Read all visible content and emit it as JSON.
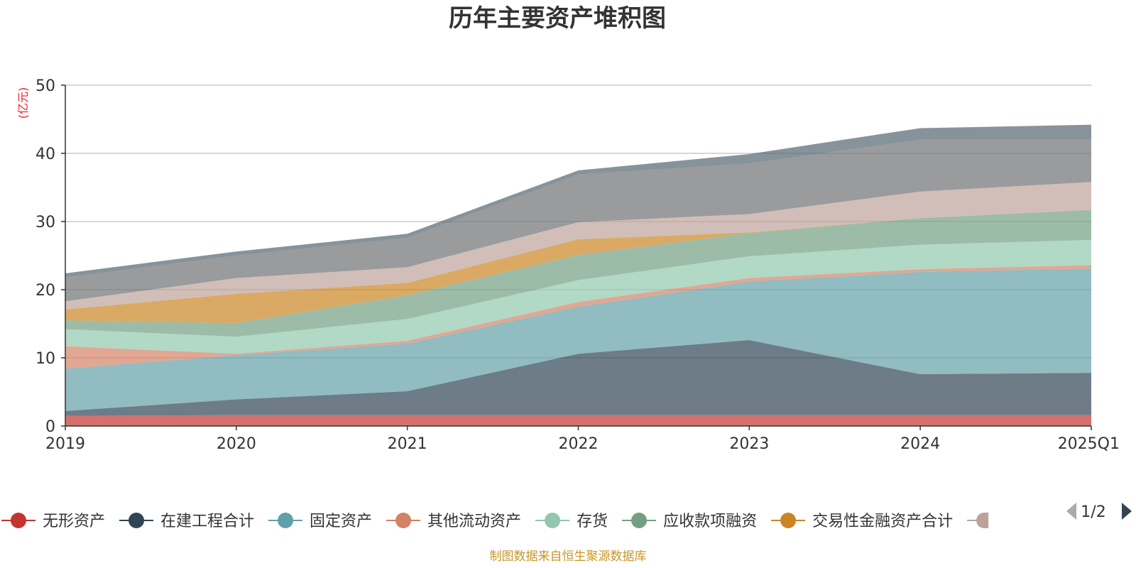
{
  "chart_data": {
    "type": "area",
    "title": "历年主要资产堆积图",
    "unit_label": "(亿元)",
    "x": [
      "2019",
      "2020",
      "2021",
      "2022",
      "2023",
      "2024",
      "2025Q1"
    ],
    "ylim": [
      0,
      50
    ],
    "yticks": [
      0,
      10,
      20,
      30,
      40,
      50
    ],
    "grid": true,
    "stacked": true,
    "series": [
      {
        "name": "无形资产",
        "color": "#c23531",
        "values": [
          1.5,
          1.6,
          1.6,
          1.6,
          1.6,
          1.6,
          1.6
        ]
      },
      {
        "name": "在建工程合计",
        "color": "#2f4554",
        "values": [
          0.7,
          2.3,
          3.5,
          9.0,
          11.0,
          6.0,
          6.2
        ]
      },
      {
        "name": "固定资产",
        "color": "#61a0a8",
        "values": [
          6.2,
          6.5,
          7.0,
          6.9,
          8.6,
          15.0,
          15.3
        ]
      },
      {
        "name": "其他流动资产",
        "color": "#d48265",
        "values": [
          3.3,
          0.2,
          0.4,
          0.7,
          0.5,
          0.4,
          0.5
        ]
      },
      {
        "name": "存货",
        "color": "#91c7ae",
        "values": [
          2.5,
          2.5,
          3.2,
          3.2,
          3.2,
          3.6,
          3.7
        ]
      },
      {
        "name": "应收款项融资",
        "color": "#749f83",
        "values": [
          1.3,
          2.0,
          3.5,
          3.7,
          3.4,
          3.9,
          4.4
        ]
      },
      {
        "name": "交易性金融资产合计",
        "color": "#ca8622",
        "values": [
          1.6,
          4.3,
          1.8,
          2.3,
          0.1,
          0.0,
          0.0
        ]
      },
      {
        "name": "",
        "color": "#bda29a",
        "values": [
          1.2,
          2.3,
          2.3,
          2.5,
          2.7,
          3.9,
          4.1
        ]
      },
      {
        "name": "",
        "color": "#6e7074",
        "values": [
          3.5,
          3.3,
          4.3,
          7.0,
          7.4,
          7.6,
          6.2
        ]
      },
      {
        "name": "",
        "color": "#546570",
        "values": [
          0.6,
          0.6,
          0.6,
          0.6,
          1.4,
          1.7,
          2.2
        ]
      }
    ],
    "legend_position": "bottom",
    "legend_page": "1/2"
  },
  "footer": {
    "source": "制图数据来自恒生聚源数据库",
    "source_color": "#c8962a"
  },
  "colors": {
    "axis": "#333333",
    "grid": "#cccccc",
    "unit": "#e8222b",
    "pager_active": "#2f4554",
    "pager_inactive": "#aaaaaa"
  }
}
